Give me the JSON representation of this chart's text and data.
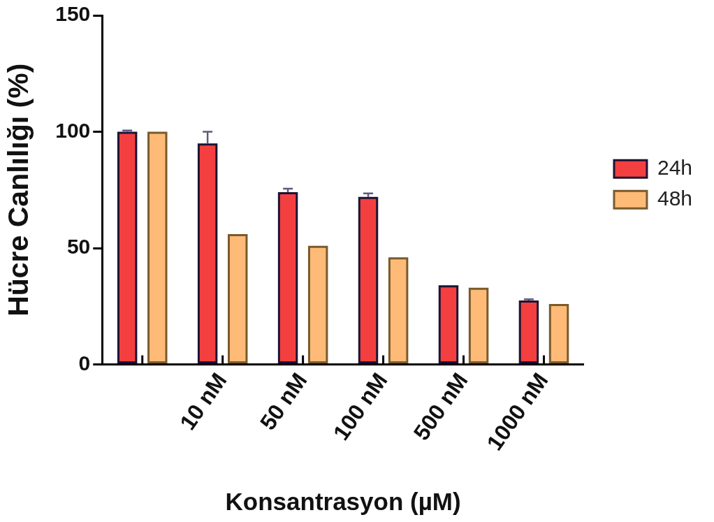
{
  "chart_data": {
    "type": "bar",
    "xlabel": "Konsantrasyon (µM)",
    "ylabel": "Hücre Canlılığı (%)",
    "categories": [
      null,
      "10 nM",
      "50 nM",
      "100 nM",
      "500 nM",
      "1000 nM"
    ],
    "series": [
      {
        "name": "24h",
        "color": "#f43f40",
        "values": [
          100,
          95,
          74,
          72,
          34,
          27.5
        ],
        "errors": [
          0.5,
          5,
          1.5,
          1.5,
          null,
          0.5
        ]
      },
      {
        "name": "48h",
        "color": "#fdbb77",
        "values": [
          100,
          56,
          51,
          46,
          33,
          26
        ]
      }
    ],
    "ylim": [
      0,
      150
    ],
    "yticks": [
      0,
      50,
      100,
      150
    ],
    "legend": "right"
  }
}
